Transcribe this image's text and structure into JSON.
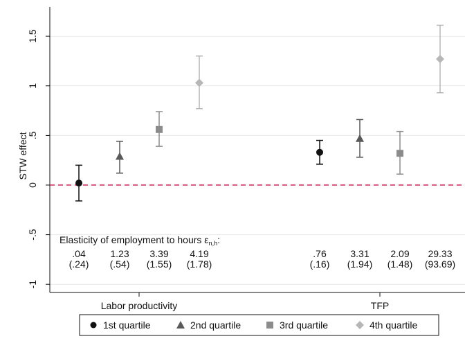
{
  "chart_data": {
    "type": "scatter",
    "ylabel": "STW effect",
    "ylim": [
      -1.0,
      1.5
    ],
    "yticks": [
      -1,
      -0.5,
      0,
      0.5,
      1,
      1.5
    ],
    "ytick_labels": [
      "-1",
      "-.5",
      "0",
      ".5",
      "1",
      "1.5"
    ],
    "grid": true,
    "reference_line": {
      "y": 0,
      "color": "#c8285a",
      "style": "dashed"
    },
    "groups": [
      "Labor productivity",
      "TFP"
    ],
    "legend": {
      "placement": "bottom"
    },
    "series": [
      {
        "name": "1st quartile",
        "marker": "circle",
        "color": "#111111",
        "points": [
          {
            "group": "Labor productivity",
            "y": 0.02,
            "lo": -0.16,
            "hi": 0.2
          },
          {
            "group": "TFP",
            "y": 0.33,
            "lo": 0.21,
            "hi": 0.45
          }
        ]
      },
      {
        "name": "2nd quartile",
        "marker": "triangle",
        "color": "#595959",
        "points": [
          {
            "group": "Labor productivity",
            "y": 0.29,
            "lo": 0.12,
            "hi": 0.44
          },
          {
            "group": "TFP",
            "y": 0.47,
            "lo": 0.28,
            "hi": 0.66
          }
        ]
      },
      {
        "name": "3rd quartile",
        "marker": "square",
        "color": "#8c8c8c",
        "points": [
          {
            "group": "Labor productivity",
            "y": 0.56,
            "lo": 0.39,
            "hi": 0.74
          },
          {
            "group": "TFP",
            "y": 0.32,
            "lo": 0.11,
            "hi": 0.54
          }
        ]
      },
      {
        "name": "4th quartile",
        "marker": "diamond",
        "color": "#b7b7b7",
        "points": [
          {
            "group": "Labor productivity",
            "y": 1.03,
            "lo": 0.77,
            "hi": 1.3
          },
          {
            "group": "TFP",
            "y": 1.27,
            "lo": 0.93,
            "hi": 1.61
          }
        ]
      }
    ],
    "annotation": {
      "title": "Elasticity of employment to hours ε",
      "subscript": "n,h",
      "title_suffix": ":",
      "values": [
        {
          "value": ".04",
          "se": "(.24)"
        },
        {
          "value": "1.23",
          "se": "(.54)"
        },
        {
          "value": "3.39",
          "se": "(1.55)"
        },
        {
          "value": "4.19",
          "se": "(1.78)"
        },
        {
          "value": ".76",
          "se": "(.16)"
        },
        {
          "value": "3.31",
          "se": "(1.94)"
        },
        {
          "value": "2.09",
          "se": "(1.48)"
        },
        {
          "value": "29.33",
          "se": "(93.69)"
        }
      ]
    }
  }
}
